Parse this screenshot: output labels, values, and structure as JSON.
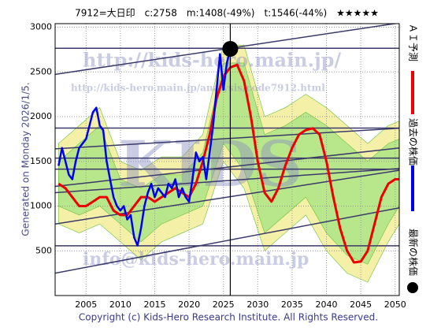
{
  "chart_data": {
    "type": "line",
    "title": "7912=大日印　c:2758　m:1408(-49%)　t:1546(-44%)　★★★★★",
    "side_label": "Generated on Monday 2026/1/5.",
    "footer": "Copyright (c) Kids-Hero Research Institute. All Rights Reserved.",
    "watermarks": [
      "http://kids-hero.main.jp/",
      "http://kids-hero.main.jp/analysis/code7912.html",
      "KIDS",
      "info@kids-hero.main.jp"
    ],
    "xlim": [
      2000.5,
      2050.6
    ],
    "ylim": [
      0,
      3040
    ],
    "xticks": [
      2005,
      2010,
      2015,
      2020,
      2025,
      2030,
      2035,
      2040,
      2045,
      2050
    ],
    "yticks": [
      500,
      1000,
      1500,
      2000,
      2500,
      3000
    ],
    "grid": true,
    "bands": [
      {
        "color": "#f5f0a8",
        "x": [
          2001,
          2004,
          2007,
          2010,
          2013,
          2016,
          2019,
          2022,
          2025,
          2028,
          2031,
          2034,
          2037,
          2040,
          2043,
          2046,
          2049,
          2050.6
        ],
        "upper": [
          1700,
          1900,
          2100,
          1500,
          1400,
          1550,
          1550,
          1800,
          2800,
          2800,
          2000,
          2100,
          2250,
          2100,
          1900,
          1700,
          1900,
          1950
        ],
        "lower": [
          800,
          700,
          800,
          600,
          400,
          600,
          700,
          800,
          1500,
          1200,
          500,
          700,
          900,
          500,
          250,
          150,
          600,
          800
        ]
      },
      {
        "color": "#b8e68a",
        "x": [
          2001,
          2004,
          2007,
          2010,
          2013,
          2016,
          2019,
          2022,
          2025,
          2028,
          2031,
          2034,
          2037,
          2040,
          2043,
          2046,
          2049,
          2050.6
        ],
        "upper": [
          1500,
          1700,
          1900,
          1300,
          1200,
          1350,
          1350,
          1600,
          2600,
          2600,
          1800,
          1900,
          2050,
          1900,
          1700,
          1500,
          1700,
          1750
        ],
        "lower": [
          1000,
          900,
          1000,
          800,
          600,
          800,
          900,
          1000,
          1700,
          1400,
          700,
          900,
          1100,
          700,
          450,
          350,
          800,
          1000
        ]
      }
    ],
    "trend_lines": {
      "color": "#3a3a6a",
      "values": [
        [
          2473,
          3048
        ],
        [
          1640,
          1870
        ],
        [
          1220,
          1650
        ],
        [
          1150,
          1420
        ],
        [
          800,
          1400
        ],
        [
          250,
          980
        ]
      ]
    },
    "hlines": {
      "color": "#3a3a6a",
      "values": [
        2765,
        1873,
        1537,
        1413,
        556
      ]
    },
    "series": [
      {
        "name": "ＡＩ予測",
        "color": "#ee0000",
        "x": [
          2001,
          2002,
          2003,
          2004,
          2005,
          2006,
          2007,
          2008,
          2009,
          2010,
          2011,
          2012,
          2013,
          2014,
          2015,
          2016,
          2017,
          2018,
          2019,
          2020,
          2021,
          2022,
          2023,
          2024,
          2025,
          2026,
          2027,
          2028,
          2029,
          2030,
          2031,
          2032,
          2033,
          2034,
          2035,
          2036,
          2037,
          2038,
          2039,
          2040,
          2041,
          2042,
          2043,
          2044,
          2045,
          2046,
          2047,
          2048,
          2049,
          2050,
          2050.6
        ],
        "values": [
          1250,
          1200,
          1100,
          1000,
          1000,
          1050,
          1100,
          1100,
          950,
          900,
          900,
          1000,
          1100,
          1100,
          1050,
          1100,
          1150,
          1200,
          1150,
          1100,
          1250,
          1500,
          1800,
          2200,
          2450,
          2550,
          2580,
          2400,
          2000,
          1500,
          1150,
          1050,
          1200,
          1450,
          1650,
          1800,
          1850,
          1870,
          1800,
          1500,
          1100,
          750,
          500,
          370,
          380,
          500,
          800,
          1100,
          1250,
          1300,
          1300
        ]
      },
      {
        "name": "過去の株価",
        "color": "#0000ee",
        "x": [
          2001,
          2001.5,
          2002,
          2002.5,
          2003,
          2003.5,
          2004,
          2004.5,
          2005,
          2005.5,
          2006,
          2006.5,
          2007,
          2007.5,
          2008,
          2008.5,
          2009,
          2009.5,
          2010,
          2010.5,
          2011,
          2011.5,
          2012,
          2012.5,
          2013,
          2013.5,
          2014,
          2014.5,
          2015,
          2015.5,
          2016,
          2016.5,
          2017,
          2017.5,
          2018,
          2018.5,
          2019,
          2019.5,
          2020,
          2020.5,
          2021,
          2021.5,
          2022,
          2022.5,
          2023,
          2023.5,
          2024,
          2024.5,
          2025,
          2025.5,
          2026
        ],
        "values": [
          1450,
          1650,
          1500,
          1350,
          1300,
          1500,
          1650,
          1700,
          1750,
          1900,
          2050,
          2100,
          1900,
          1850,
          1500,
          1300,
          1100,
          1000,
          950,
          1000,
          850,
          900,
          650,
          560,
          750,
          1000,
          1150,
          1250,
          1100,
          1200,
          1150,
          1100,
          1250,
          1200,
          1300,
          1100,
          1200,
          1100,
          1050,
          1300,
          1600,
          1500,
          1550,
          1300,
          1600,
          1900,
          2300,
          2700,
          2300,
          2600,
          2758
        ]
      },
      {
        "name": "最新の株価",
        "color": "#000000",
        "x": [
          2026
        ],
        "values": [
          2758
        ]
      }
    ]
  }
}
